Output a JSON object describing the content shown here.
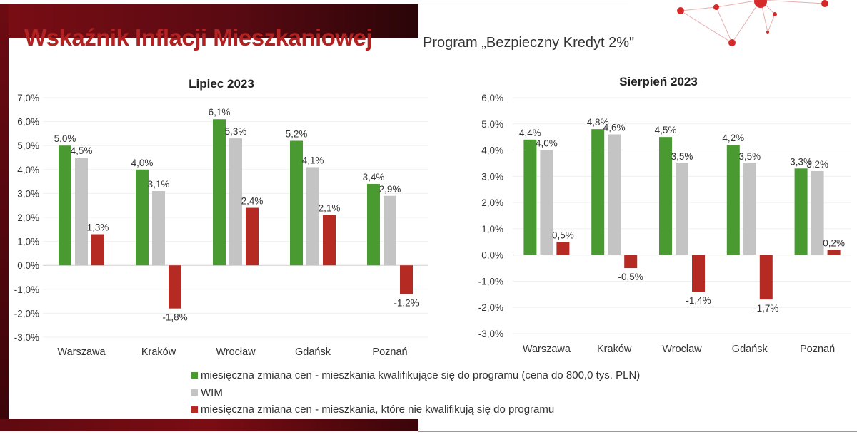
{
  "header": {
    "title": "Wskaźnik Inflacji Mieszkaniowej",
    "subtitle": "Program „Bezpieczny Kredyt 2%\""
  },
  "colors": {
    "green": "#4a9a32",
    "gray": "#c4c4c4",
    "red": "#b52a22",
    "frame": "#7a0d14",
    "title": "#b32222"
  },
  "legend": [
    {
      "label": "miesięczna zmiana cen - mieszkania kwalifikujące się do programu (cena do 800,0 tys. PLN)",
      "color": "#4a9a32"
    },
    {
      "label": "WIM",
      "color": "#c4c4c4"
    },
    {
      "label": "miesięczna zmiana cen - mieszkania, które nie kwalifikują się do programu",
      "color": "#b52a22"
    }
  ],
  "chart_data": [
    {
      "type": "bar",
      "title": "Lipiec 2023",
      "categories": [
        "Warszawa",
        "Kraków",
        "Wrocław",
        "Gdańsk",
        "Poznań"
      ],
      "ylim": [
        -3.0,
        7.0
      ],
      "yticks": [
        "7,0%",
        "6,0%",
        "5,0%",
        "4,0%",
        "3,0%",
        "2,0%",
        "1,0%",
        "0,0%",
        "-1,0%",
        "-2,0%",
        "-3,0%"
      ],
      "grid": true,
      "legend": "bottom",
      "series": [
        {
          "name": "miesięczna zmiana cen - mieszkania kwalifikujące się do programu (cena do 800,0 tys. PLN)",
          "values": [
            5.0,
            4.0,
            6.1,
            5.2,
            3.4
          ],
          "labels": [
            "5,0%",
            "4,0%",
            "6,1%",
            "5,2%",
            "3,4%"
          ]
        },
        {
          "name": "WIM",
          "values": [
            4.5,
            3.1,
            5.3,
            4.1,
            2.9
          ],
          "labels": [
            "4,5%",
            "3,1%",
            "5,3%",
            "4,1%",
            "2,9%"
          ]
        },
        {
          "name": "miesięczna zmiana cen - mieszkania, które nie kwalifikują się do programu",
          "values": [
            1.3,
            -1.8,
            2.4,
            2.1,
            -1.2
          ],
          "labels": [
            "1,3%",
            "-1,8%",
            "2,4%",
            "2,1%",
            "-1,2%"
          ]
        }
      ]
    },
    {
      "type": "bar",
      "title": "Sierpień 2023",
      "categories": [
        "Warszawa",
        "Kraków",
        "Wrocław",
        "Gdańsk",
        "Poznań"
      ],
      "ylim": [
        -3.0,
        6.0
      ],
      "yticks": [
        "6,0%",
        "5,0%",
        "4,0%",
        "3,0%",
        "2,0%",
        "1,0%",
        "0,0%",
        "-1,0%",
        "-2,0%",
        "-3,0%"
      ],
      "grid": true,
      "legend": "bottom",
      "series": [
        {
          "name": "miesięczna zmiana cen - mieszkania kwalifikujące się do programu (cena do 800,0 tys. PLN)",
          "values": [
            4.4,
            4.8,
            4.5,
            4.2,
            3.3
          ],
          "labels": [
            "4,4%",
            "4,8%",
            "4,5%",
            "4,2%",
            "3,3%"
          ]
        },
        {
          "name": "WIM",
          "values": [
            4.0,
            4.6,
            3.5,
            3.5,
            3.2
          ],
          "labels": [
            "4,0%",
            "4,6%",
            "3,5%",
            "3,5%",
            "3,2%"
          ]
        },
        {
          "name": "miesięczna zmiana cen - mieszkania, które nie kwalifikują się do programu",
          "values": [
            0.5,
            -0.5,
            -1.4,
            -1.7,
            0.2
          ],
          "labels": [
            "0,5%",
            "-0,5%",
            "-1,4%",
            "-1,7%",
            "0,2%"
          ]
        }
      ]
    }
  ]
}
